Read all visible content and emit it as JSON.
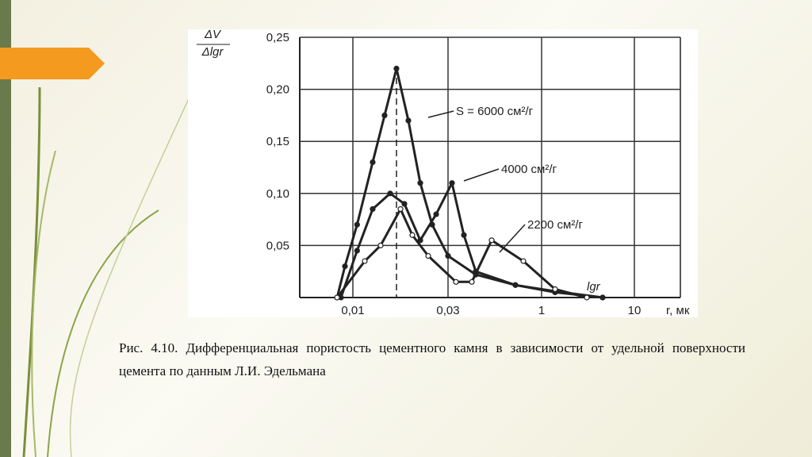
{
  "chart_data": {
    "type": "line",
    "y_label": {
      "numerator": "ΔV",
      "denominator": "Δlgr"
    },
    "x_axis_name": "lgr",
    "x_label": "r, мк",
    "xlim": [
      0.0055,
      30
    ],
    "xticks": [
      {
        "value": 0.01,
        "label": "0,01"
      },
      {
        "value": 0.03,
        "label": "0,03"
      },
      1,
      10
    ],
    "ylim": [
      0,
      0.25
    ],
    "yticks": [
      {
        "value": 0.05,
        "label": "0,05"
      },
      {
        "value": 0.1,
        "label": "0,10"
      },
      {
        "value": 0.15,
        "label": "0,15"
      },
      {
        "value": 0.2,
        "label": "0,20"
      },
      {
        "value": 0.25,
        "label": "0,25"
      }
    ],
    "grid": true,
    "series": [
      {
        "name": "S = 6000 см²/г",
        "color": "#222222",
        "marker": "filled",
        "x": [
          0.00837,
          0.00915,
          0.0105,
          0.01257,
          0.01442,
          0.01654,
          0.01898,
          0.02178,
          0.02498,
          0.03,
          0.0849,
          0.375,
          1.397,
          4.55
        ],
        "values": [
          0,
          0.03,
          0.07,
          0.13,
          0.175,
          0.22,
          0.17,
          0.11,
          0.07,
          0.04,
          0.022,
          0.012,
          0.006,
          0
        ]
      },
      {
        "name": "4000 см²/г",
        "color": "#222222",
        "marker": "filled",
        "x": [
          0.00875,
          0.0105,
          0.01257,
          0.01538,
          0.01813,
          0.02178,
          0.02616,
          0.0348,
          0.0544,
          0.0849,
          0.375,
          1.397,
          4.55
        ],
        "values": [
          0,
          0.045,
          0.085,
          0.1,
          0.09,
          0.055,
          0.08,
          0.11,
          0.06,
          0.025,
          0.012,
          0.005,
          0
        ]
      },
      {
        "name": "2200 см²/г",
        "color": "#222222",
        "marker": "open",
        "x": [
          0.00837,
          0.01147,
          0.01378,
          0.01733,
          0.01987,
          0.02387,
          0.0404,
          0.0732,
          0.154,
          0.505,
          1.397,
          3.07
        ],
        "values": [
          0,
          0.035,
          0.05,
          0.085,
          0.06,
          0.04,
          0.015,
          0.015,
          0.055,
          0.035,
          0.008,
          0
        ]
      }
    ]
  },
  "caption": "Рис. 4.10. Дифференциальная пористость  цементного камня в зависимости от удельной поверхности цемента по данным Л.И. Эдельмана"
}
